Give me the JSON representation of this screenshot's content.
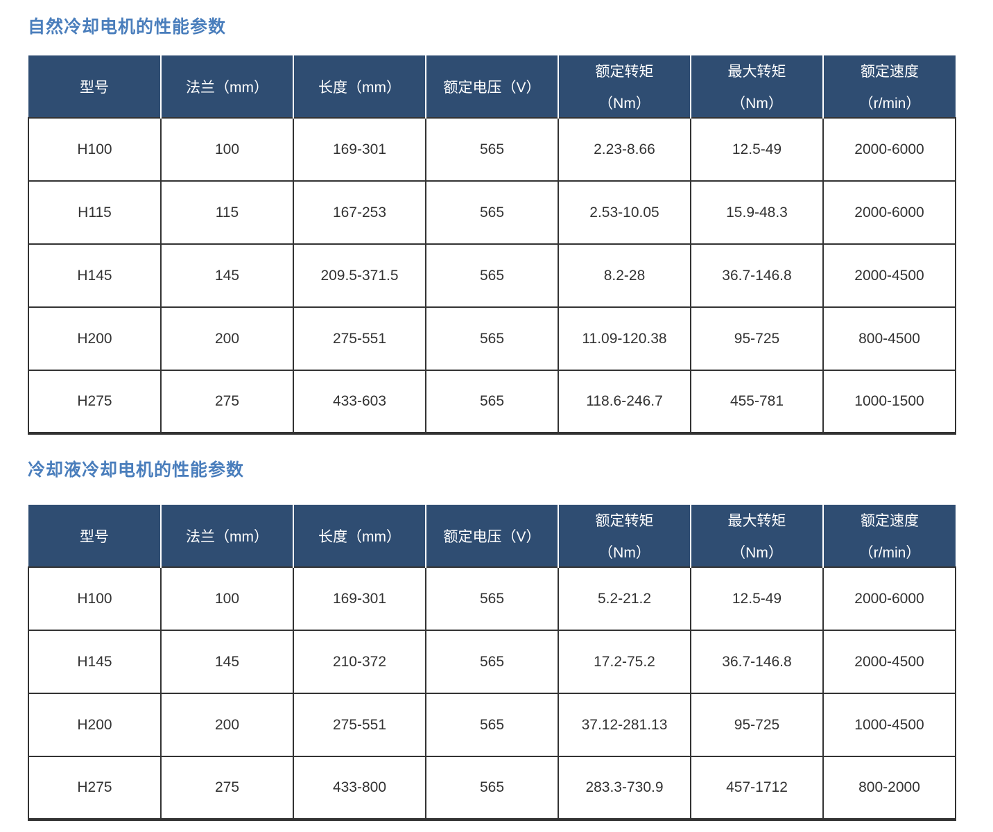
{
  "colors": {
    "title_color": "#4A7EBC",
    "header_bg": "#2F4D72",
    "header_text": "#FFFFFF",
    "border_color": "#333333",
    "cell_text": "#333333",
    "page_bg": "#FFFFFF"
  },
  "columns": [
    {
      "label": "型号",
      "sub": ""
    },
    {
      "label": "法兰（mm）",
      "sub": ""
    },
    {
      "label": "长度（mm）",
      "sub": ""
    },
    {
      "label": "额定电压（V）",
      "sub": ""
    },
    {
      "label": "额定转矩",
      "sub": "（Nm）"
    },
    {
      "label": "最大转矩",
      "sub": "（Nm）"
    },
    {
      "label": "额定速度",
      "sub": "（r/min）"
    }
  ],
  "tables": [
    {
      "title": "自然冷却电机的性能参数",
      "rows": [
        [
          "H100",
          "100",
          "169-301",
          "565",
          "2.23-8.66",
          "12.5-49",
          "2000-6000"
        ],
        [
          "H115",
          "115",
          "167-253",
          "565",
          "2.53-10.05",
          "15.9-48.3",
          "2000-6000"
        ],
        [
          "H145",
          "145",
          "209.5-371.5",
          "565",
          "8.2-28",
          "36.7-146.8",
          "2000-4500"
        ],
        [
          "H200",
          "200",
          "275-551",
          "565",
          "11.09-120.38",
          "95-725",
          "800-4500"
        ],
        [
          "H275",
          "275",
          "433-603",
          "565",
          "118.6-246.7",
          "455-781",
          "1000-1500"
        ]
      ]
    },
    {
      "title": "冷却液冷却电机的性能参数",
      "rows": [
        [
          "H100",
          "100",
          "169-301",
          "565",
          "5.2-21.2",
          "12.5-49",
          "2000-6000"
        ],
        [
          "H145",
          "145",
          "210-372",
          "565",
          "17.2-75.2",
          "36.7-146.8",
          "2000-4500"
        ],
        [
          "H200",
          "200",
          "275-551",
          "565",
          "37.12-281.13",
          "95-725",
          "1000-4500"
        ],
        [
          "H275",
          "275",
          "433-800",
          "565",
          "283.3-730.9",
          "457-1712",
          "800-2000"
        ]
      ]
    }
  ]
}
